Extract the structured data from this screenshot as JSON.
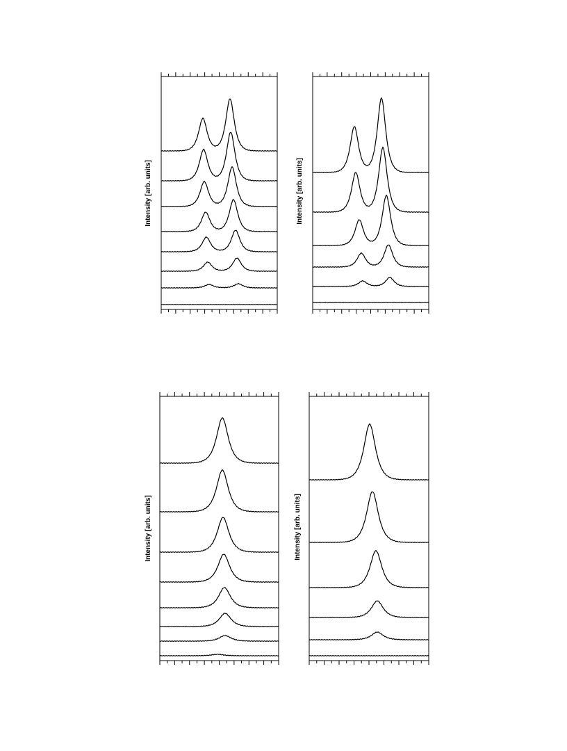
{
  "panels": [
    {
      "ylabel": "Intensity [arb. units]"
    },
    {
      "ylabel": "Intensity [arb. units]"
    },
    {
      "ylabel": "Intensity [arb. units]"
    },
    {
      "ylabel": "Intensity [arb. units]"
    }
  ]
}
